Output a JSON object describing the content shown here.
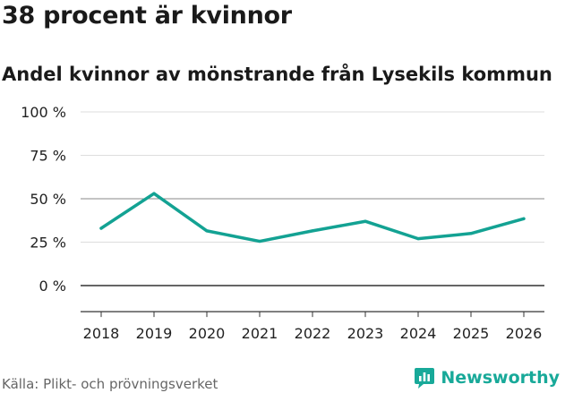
{
  "header": {
    "title": "38 procent är kvinnor",
    "subtitle": "Andel kvinnor av mönstrande från Lysekils kommun"
  },
  "footer": {
    "source": "Källa: Plikt- och prövningsverket",
    "brand": "Newsworthy"
  },
  "colors": {
    "line": "#13a293",
    "grid": "#dddddd",
    "grid_strong": "#888888",
    "zero_line": "#333333",
    "brand": "#18a999"
  },
  "chart_data": {
    "type": "line",
    "title": "38 procent är kvinnor",
    "subtitle": "Andel kvinnor av mönstrande från Lysekils kommun",
    "xlabel": "",
    "ylabel": "",
    "x": [
      2018,
      2019,
      2020,
      2021,
      2022,
      2023,
      2024,
      2025,
      2026
    ],
    "series": [
      {
        "name": "Andel kvinnor",
        "values": [
          33,
          53,
          31.5,
          25.5,
          31.5,
          37,
          27,
          30,
          38.5
        ]
      }
    ],
    "ylim": [
      -15,
      100
    ],
    "yticks": [
      100,
      75,
      50,
      25,
      0
    ],
    "ytick_labels": [
      "100 %",
      "75 %",
      "50 %",
      "25 %",
      "0 %"
    ],
    "xtick_labels": [
      "2018",
      "2019",
      "2020",
      "2021",
      "2022",
      "2023",
      "2024",
      "2025",
      "2026"
    ],
    "grid": true,
    "legend": "none"
  }
}
